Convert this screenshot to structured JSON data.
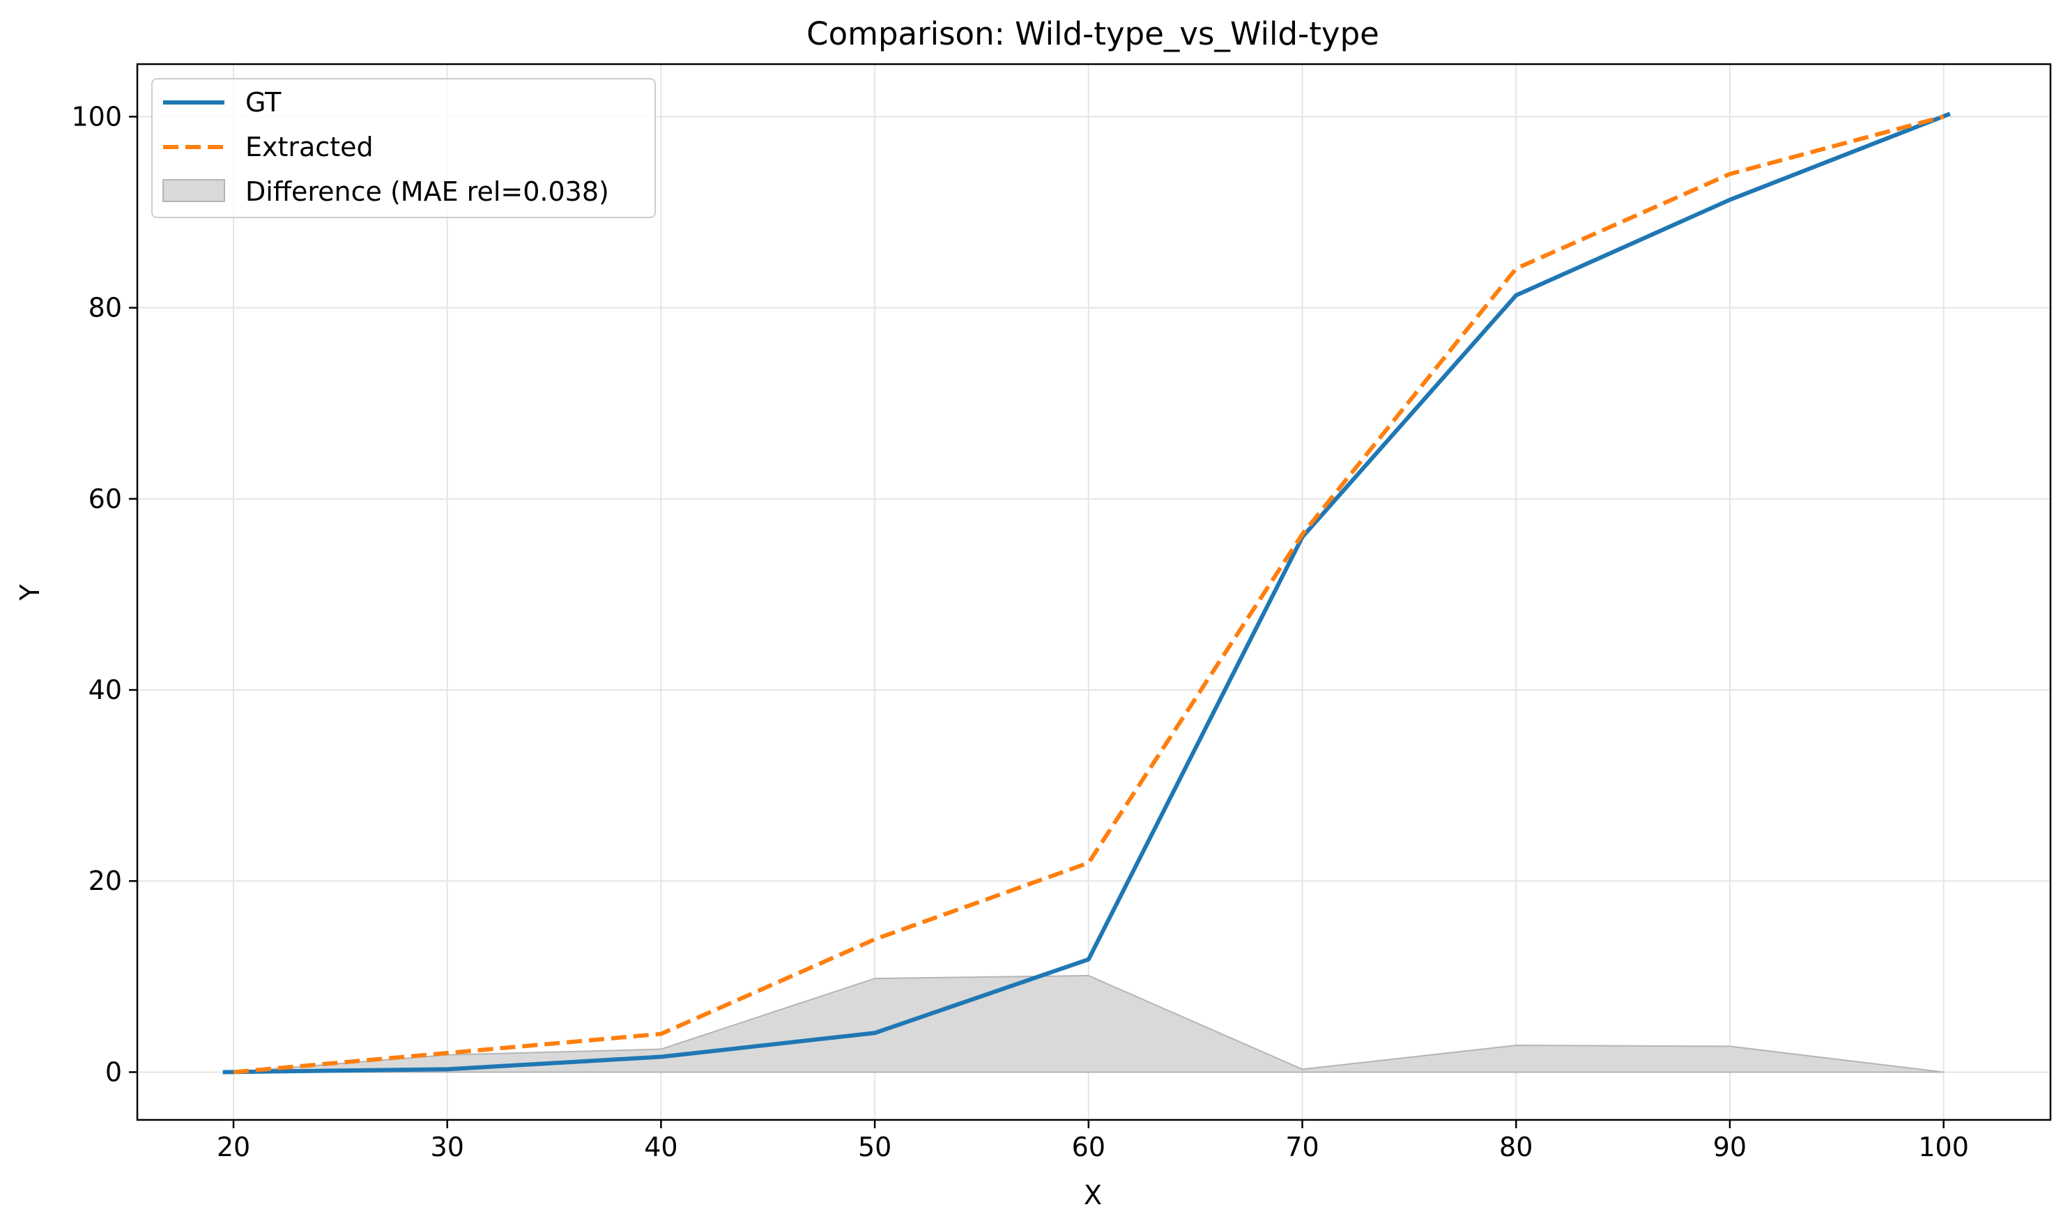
{
  "chart_data": {
    "type": "line",
    "title": "Comparison: Wild-type_vs_Wild-type",
    "xlabel": "X",
    "ylabel": "Y",
    "xlim": [
      15.5,
      105
    ],
    "ylim": [
      -5,
      105.5
    ],
    "xticks": [
      20,
      30,
      40,
      50,
      60,
      70,
      80,
      90,
      100
    ],
    "yticks": [
      0,
      20,
      40,
      60,
      80,
      100
    ],
    "grid": true,
    "legend_position": "top-left",
    "series": [
      {
        "name": "GT",
        "color": "#1f77b4",
        "style": "solid",
        "x": [
          19.5,
          30,
          40,
          50,
          60,
          70,
          80,
          90,
          100.3
        ],
        "y": [
          0,
          0.3,
          1.6,
          4.1,
          11.8,
          56.0,
          81.3,
          91.3,
          100.3
        ]
      },
      {
        "name": "Extracted",
        "color": "#ff7f0e",
        "style": "dashed",
        "x": [
          20,
          30,
          40,
          50,
          60,
          70,
          80,
          90,
          100
        ],
        "y": [
          0,
          2.0,
          4.0,
          13.9,
          21.9,
          56.3,
          84.1,
          94.0,
          100.0
        ]
      }
    ],
    "difference": {
      "name": "Difference (MAE rel=0.038)",
      "color": "#d9d9d9",
      "x": [
        20,
        30,
        40,
        50,
        60,
        70,
        80,
        90,
        100
      ],
      "y": [
        0,
        1.8,
        2.4,
        9.8,
        10.1,
        0.3,
        2.8,
        2.7,
        0
      ]
    }
  }
}
